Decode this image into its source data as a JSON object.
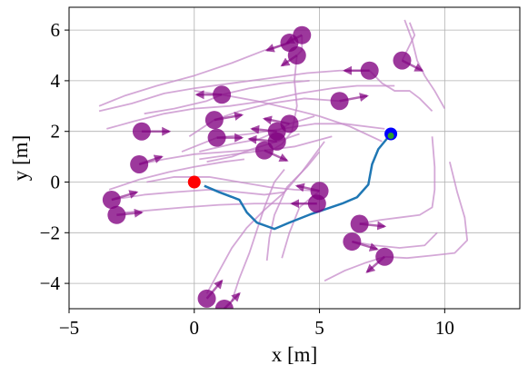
{
  "chart_data": {
    "type": "scatter",
    "xlabel": "x [m]",
    "ylabel": "y [m]",
    "xlim": [
      -5,
      13
    ],
    "ylim": [
      -5,
      6.9
    ],
    "grid": true,
    "xticks": [
      -5,
      0,
      5,
      10
    ],
    "yticks": [
      -4,
      -2,
      0,
      2,
      4,
      6
    ],
    "xtick_labels": [
      "−5",
      "0",
      "5",
      "10"
    ],
    "ytick_labels": [
      "−4",
      "−2",
      "0",
      "2",
      "4",
      "6"
    ],
    "colors": {
      "pedestrian": "#800080",
      "trail": "#c58bc9",
      "robot_path": "#1f77b4",
      "start": "#ff0000",
      "goal": "#0000ff",
      "goal_inner": "#2ca02c",
      "grid": "#b0b0b0"
    },
    "robot_start": [
      0,
      0
    ],
    "robot_goal": [
      7.85,
      1.9
    ],
    "robot_path": [
      [
        0.4,
        -0.15
      ],
      [
        1.0,
        -0.4
      ],
      [
        1.8,
        -0.7
      ],
      [
        2.1,
        -1.2
      ],
      [
        2.5,
        -1.6
      ],
      [
        3.2,
        -1.85
      ],
      [
        3.8,
        -1.6
      ],
      [
        4.7,
        -1.25
      ],
      [
        5.3,
        -1.05
      ],
      [
        5.9,
        -0.85
      ],
      [
        6.5,
        -0.6
      ],
      [
        6.95,
        -0.1
      ],
      [
        7.1,
        0.7
      ],
      [
        7.35,
        1.3
      ],
      [
        7.85,
        1.9
      ]
    ],
    "pedestrians": [
      {
        "x": 4.3,
        "y": 5.8,
        "dx": -0.6,
        "dy": -0.3
      },
      {
        "x": 3.8,
        "y": 5.5,
        "dx": -0.9,
        "dy": -0.3
      },
      {
        "x": 4.1,
        "y": 5.0,
        "dx": -0.6,
        "dy": -0.4
      },
      {
        "x": 7.0,
        "y": 4.4,
        "dx": -1.0,
        "dy": 0.0
      },
      {
        "x": 8.3,
        "y": 4.8,
        "dx": 0.8,
        "dy": -0.4
      },
      {
        "x": 1.1,
        "y": 3.45,
        "dx": -1.0,
        "dy": 0.0
      },
      {
        "x": 5.8,
        "y": 3.2,
        "dx": 1.1,
        "dy": 0.2
      },
      {
        "x": 0.8,
        "y": 2.45,
        "dx": 1.1,
        "dy": 0.2
      },
      {
        "x": 3.8,
        "y": 2.3,
        "dx": -1.0,
        "dy": 0.2
      },
      {
        "x": 3.3,
        "y": 2.0,
        "dx": -1.0,
        "dy": 0.1
      },
      {
        "x": -2.1,
        "y": 2.0,
        "dx": 1.1,
        "dy": 0.0
      },
      {
        "x": 0.9,
        "y": 1.75,
        "dx": 1.0,
        "dy": 0.0
      },
      {
        "x": 3.3,
        "y": 1.6,
        "dx": -1.1,
        "dy": 0.1
      },
      {
        "x": 2.8,
        "y": 1.25,
        "dx": 0.9,
        "dy": -0.4
      },
      {
        "x": -2.2,
        "y": 0.7,
        "dx": 0.9,
        "dy": 0.3
      },
      {
        "x": 5.0,
        "y": -0.35,
        "dx": -0.9,
        "dy": 0.2
      },
      {
        "x": 4.9,
        "y": -0.85,
        "dx": -1.0,
        "dy": 0.0
      },
      {
        "x": -3.3,
        "y": -0.7,
        "dx": 1.0,
        "dy": 0.3
      },
      {
        "x": -3.1,
        "y": -1.3,
        "dx": 1.0,
        "dy": 0.1
      },
      {
        "x": 6.6,
        "y": -1.65,
        "dx": 1.0,
        "dy": -0.1
      },
      {
        "x": 6.3,
        "y": -2.35,
        "dx": 1.0,
        "dy": -0.3
      },
      {
        "x": 7.6,
        "y": -2.95,
        "dx": -0.7,
        "dy": -0.6
      },
      {
        "x": 0.5,
        "y": -4.6,
        "dx": 0.6,
        "dy": 0.7
      },
      {
        "x": 1.2,
        "y": -5.0,
        "dx": 0.6,
        "dy": 0.6
      }
    ],
    "trails": [
      [
        [
          -3.8,
          2.8
        ],
        [
          -2.5,
          3.1
        ],
        [
          -1.2,
          3.5
        ],
        [
          0.0,
          3.7
        ],
        [
          1.5,
          3.9
        ],
        [
          3.0,
          4.1
        ],
        [
          4.5,
          4.3
        ],
        [
          5.8,
          4.4
        ],
        [
          7.0,
          4.4
        ]
      ],
      [
        [
          -3.8,
          3.0
        ],
        [
          -2.8,
          3.4
        ],
        [
          -1.5,
          3.8
        ],
        [
          0.0,
          4.2
        ],
        [
          1.5,
          4.7
        ],
        [
          2.8,
          5.2
        ],
        [
          3.8,
          5.5
        ]
      ],
      [
        [
          -3.5,
          2.1
        ],
        [
          -2.4,
          2.4
        ],
        [
          -1.2,
          2.7
        ],
        [
          0.0,
          2.9
        ],
        [
          1.4,
          3.0
        ],
        [
          2.8,
          3.2
        ],
        [
          4.2,
          3.5
        ],
        [
          5.5,
          3.7
        ],
        [
          6.5,
          3.8
        ],
        [
          8.0,
          3.8
        ]
      ],
      [
        [
          -2.0,
          2.7
        ],
        [
          -0.8,
          2.9
        ],
        [
          0.5,
          3.2
        ],
        [
          1.1,
          3.45
        ],
        [
          2.2,
          3.7
        ],
        [
          3.5,
          3.9
        ],
        [
          4.6,
          4.0
        ]
      ],
      [
        [
          0.0,
          3.6
        ],
        [
          1.1,
          3.45
        ],
        [
          2.5,
          3.2
        ],
        [
          3.8,
          2.9
        ],
        [
          5.0,
          2.6
        ],
        [
          6.2,
          2.2
        ],
        [
          7.5,
          1.6
        ]
      ],
      [
        [
          -0.2,
          1.8
        ],
        [
          0.8,
          2.45
        ],
        [
          1.8,
          2.8
        ],
        [
          3.0,
          3.1
        ],
        [
          4.4,
          3.3
        ],
        [
          5.8,
          3.2
        ]
      ],
      [
        [
          -0.5,
          1.2
        ],
        [
          0.9,
          1.75
        ],
        [
          2.2,
          1.9
        ],
        [
          3.5,
          2.1
        ],
        [
          4.8,
          2.3
        ],
        [
          6.0,
          2.3
        ],
        [
          7.6,
          2.1
        ]
      ],
      [
        [
          0.2,
          0.9
        ],
        [
          1.6,
          1.1
        ],
        [
          2.8,
          1.25
        ],
        [
          4.0,
          1.4
        ],
        [
          5.5,
          1.8
        ]
      ],
      [
        [
          0.2,
          1.2
        ],
        [
          1.5,
          1.5
        ],
        [
          2.6,
          1.7
        ],
        [
          3.3,
          2.0
        ],
        [
          3.8,
          2.3
        ],
        [
          4.8,
          2.6
        ]
      ],
      [
        [
          0.5,
          0.8
        ],
        [
          1.5,
          1.0
        ],
        [
          2.3,
          1.3
        ],
        [
          3.3,
          1.6
        ],
        [
          4.2,
          1.9
        ]
      ],
      [
        [
          -3.4,
          -0.3
        ],
        [
          -2.2,
          0.1
        ],
        [
          -1.0,
          0.4
        ],
        [
          0.0,
          0.6
        ],
        [
          1.2,
          0.8
        ],
        [
          2.0,
          0.9
        ]
      ],
      [
        [
          -1.9,
          0.0
        ],
        [
          -0.8,
          0.2
        ],
        [
          0.6,
          0.2
        ],
        [
          1.8,
          0.0
        ],
        [
          3.0,
          -0.2
        ],
        [
          4.0,
          -0.3
        ],
        [
          5.0,
          -0.35
        ]
      ],
      [
        [
          -2.8,
          -1.2
        ],
        [
          -1.6,
          -1.1
        ],
        [
          -0.4,
          -1.0
        ],
        [
          1.0,
          -0.9
        ],
        [
          2.4,
          -0.85
        ],
        [
          3.6,
          -0.85
        ],
        [
          4.9,
          -0.85
        ]
      ],
      [
        [
          -3.3,
          -0.7
        ],
        [
          -2.0,
          -0.5
        ],
        [
          -0.8,
          -0.4
        ],
        [
          0.6,
          -0.3
        ],
        [
          1.8,
          -0.4
        ],
        [
          2.8,
          -0.5
        ],
        [
          3.6,
          -0.4
        ]
      ],
      [
        [
          6.6,
          -1.65
        ],
        [
          7.4,
          -1.5
        ],
        [
          8.2,
          -1.4
        ],
        [
          9.0,
          -1.3
        ],
        [
          9.5,
          -1.0
        ],
        [
          9.6,
          -0.3
        ],
        [
          9.6,
          0.6
        ],
        [
          9.5,
          1.8
        ]
      ],
      [
        [
          6.3,
          -2.35
        ],
        [
          7.2,
          -2.5
        ],
        [
          8.2,
          -2.6
        ],
        [
          9.2,
          -2.5
        ],
        [
          9.7,
          -2.0
        ]
      ],
      [
        [
          7.6,
          -2.95
        ],
        [
          8.5,
          -3.0
        ],
        [
          9.5,
          -2.9
        ],
        [
          10.4,
          -2.8
        ],
        [
          10.9,
          -2.3
        ],
        [
          10.8,
          -1.4
        ],
        [
          10.5,
          -0.4
        ],
        [
          10.2,
          0.8
        ]
      ],
      [
        [
          5.2,
          -3.9
        ],
        [
          6.0,
          -3.5
        ],
        [
          6.8,
          -3.2
        ],
        [
          7.6,
          -2.95
        ]
      ],
      [
        [
          1.5,
          -4.7
        ],
        [
          1.8,
          -3.8
        ],
        [
          2.2,
          -2.8
        ],
        [
          2.5,
          -1.9
        ],
        [
          2.8,
          -1.0
        ],
        [
          3.2,
          0.0
        ],
        [
          3.6,
          0.5
        ]
      ],
      [
        [
          0.5,
          -4.4
        ],
        [
          1.0,
          -3.5
        ],
        [
          1.5,
          -2.6
        ],
        [
          2.1,
          -1.8
        ],
        [
          2.8,
          -1.1
        ],
        [
          3.6,
          -0.4
        ],
        [
          4.3,
          0.4
        ],
        [
          5.2,
          1.6
        ]
      ],
      [
        [
          2.9,
          -3.1
        ],
        [
          3.0,
          -2.2
        ],
        [
          3.2,
          -1.3
        ],
        [
          3.7,
          -0.2
        ],
        [
          4.5,
          0.6
        ],
        [
          5.0,
          1.2
        ]
      ],
      [
        [
          3.5,
          -3.0
        ],
        [
          3.8,
          -2.0
        ],
        [
          4.2,
          -1.0
        ],
        [
          5.0,
          -0.35
        ]
      ],
      [
        [
          8.4,
          6.4
        ],
        [
          8.7,
          5.6
        ],
        [
          8.9,
          4.8
        ],
        [
          9.2,
          4.2
        ],
        [
          9.6,
          3.6
        ],
        [
          10.0,
          2.9
        ]
      ],
      [
        [
          8.6,
          6.3
        ],
        [
          8.8,
          5.8
        ],
        [
          8.3,
          4.8
        ]
      ],
      [
        [
          7.0,
          4.4
        ],
        [
          7.5,
          3.9
        ],
        [
          8.0,
          3.6
        ],
        [
          8.6,
          3.6
        ],
        [
          9.0,
          3.3
        ],
        [
          9.5,
          2.8
        ]
      ],
      [
        [
          4.3,
          5.8
        ],
        [
          4.3,
          5.2
        ],
        [
          4.1,
          5.0
        ],
        [
          4.0,
          4.0
        ],
        [
          4.1,
          3.0
        ],
        [
          3.9,
          2.0
        ],
        [
          3.5,
          1.5
        ],
        [
          3.0,
          1.2
        ]
      ],
      [
        [
          -2.2,
          0.7
        ],
        [
          -1.2,
          0.9
        ],
        [
          0.0,
          1.1
        ],
        [
          1.4,
          1.2
        ],
        [
          2.6,
          1.3
        ]
      ]
    ]
  }
}
